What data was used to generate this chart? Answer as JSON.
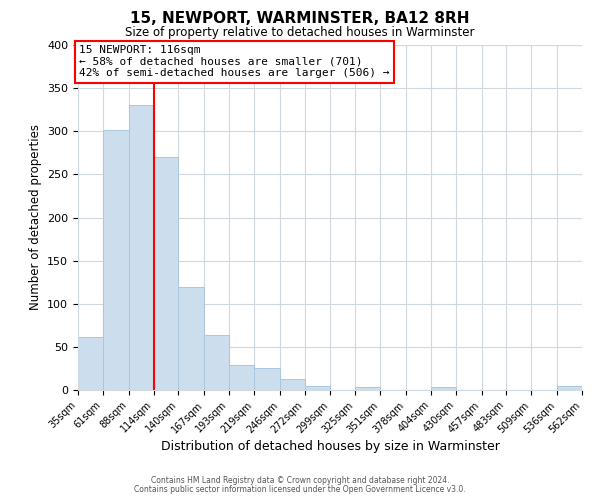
{
  "title": "15, NEWPORT, WARMINSTER, BA12 8RH",
  "subtitle": "Size of property relative to detached houses in Warminster",
  "xlabel": "Distribution of detached houses by size in Warminster",
  "ylabel": "Number of detached properties",
  "bar_color": "#ccdded",
  "bar_edge_color": "#a8c8de",
  "background_color": "#ffffff",
  "grid_color": "#d0d8e0",
  "bins": [
    35,
    61,
    88,
    114,
    140,
    167,
    193,
    219,
    246,
    272,
    299,
    325,
    351,
    378,
    404,
    430,
    457,
    483,
    509,
    536,
    562
  ],
  "counts": [
    62,
    302,
    330,
    270,
    120,
    64,
    29,
    25,
    13,
    5,
    0,
    3,
    0,
    0,
    3,
    0,
    0,
    0,
    0,
    5
  ],
  "vline_x": 114,
  "annotation_line0": "15 NEWPORT: 116sqm",
  "annotation_line1": "← 58% of detached houses are smaller (701)",
  "annotation_line2": "42% of semi-detached houses are larger (506) →",
  "ylim": [
    0,
    400
  ],
  "yticks": [
    0,
    50,
    100,
    150,
    200,
    250,
    300,
    350,
    400
  ],
  "tick_labels": [
    "35sqm",
    "61sqm",
    "88sqm",
    "114sqm",
    "140sqm",
    "167sqm",
    "193sqm",
    "219sqm",
    "246sqm",
    "272sqm",
    "299sqm",
    "325sqm",
    "351sqm",
    "378sqm",
    "404sqm",
    "430sqm",
    "457sqm",
    "483sqm",
    "509sqm",
    "536sqm",
    "562sqm"
  ],
  "footer1": "Contains HM Land Registry data © Crown copyright and database right 2024.",
  "footer2": "Contains public sector information licensed under the Open Government Licence v3.0."
}
